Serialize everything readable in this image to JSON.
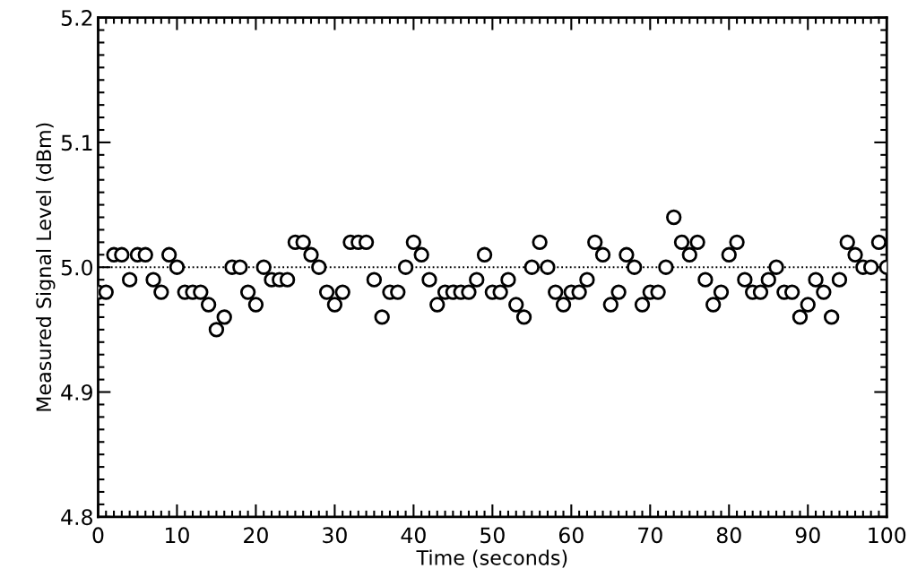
{
  "chart_data": {
    "type": "scatter",
    "xlabel": "Time (seconds)",
    "ylabel": "Measured Signal Level (dBm)",
    "x": [
      0,
      1,
      2,
      3,
      4,
      5,
      6,
      7,
      8,
      9,
      10,
      11,
      12,
      13,
      14,
      15,
      16,
      17,
      18,
      19,
      20,
      21,
      22,
      23,
      24,
      25,
      26,
      27,
      28,
      29,
      30,
      31,
      32,
      33,
      34,
      35,
      36,
      37,
      38,
      39,
      40,
      41,
      42,
      43,
      44,
      45,
      46,
      47,
      48,
      49,
      50,
      51,
      52,
      53,
      54,
      55,
      56,
      57,
      58,
      59,
      60,
      61,
      62,
      63,
      64,
      65,
      66,
      67,
      68,
      69,
      70,
      71,
      72,
      73,
      74,
      75,
      76,
      77,
      78,
      79,
      80,
      81,
      82,
      83,
      84,
      85,
      86,
      87,
      88,
      89,
      90,
      91,
      92,
      93,
      94,
      95,
      96,
      97,
      98,
      99,
      100
    ],
    "values": [
      4.98,
      4.98,
      5.01,
      5.01,
      4.99,
      5.01,
      5.01,
      4.99,
      4.98,
      5.01,
      5.0,
      4.98,
      4.98,
      4.98,
      4.97,
      4.95,
      4.96,
      5.0,
      5.0,
      4.98,
      4.97,
      5.0,
      4.99,
      4.99,
      4.99,
      5.02,
      5.02,
      5.01,
      5.0,
      4.98,
      4.97,
      4.98,
      5.02,
      5.02,
      5.02,
      4.99,
      4.96,
      4.98,
      4.98,
      5.0,
      5.02,
      5.01,
      4.99,
      4.97,
      4.98,
      4.98,
      4.98,
      4.98,
      4.99,
      5.01,
      4.98,
      4.98,
      4.99,
      4.97,
      4.96,
      5.0,
      5.02,
      5.0,
      4.98,
      4.97,
      4.98,
      4.98,
      4.99,
      5.02,
      5.01,
      4.97,
      4.98,
      5.01,
      5.0,
      4.97,
      4.98,
      4.98,
      5.0,
      5.04,
      5.02,
      5.01,
      5.02,
      4.99,
      4.97,
      4.98,
      5.01,
      5.02,
      4.99,
      4.98,
      4.98,
      4.99,
      5.0,
      4.98,
      4.98,
      4.96,
      4.97,
      4.99,
      4.98,
      4.96,
      4.99,
      5.02,
      5.01,
      5.0,
      5.0,
      5.02,
      5.0
    ],
    "color": "#000000",
    "marker": "circle",
    "xlim": [
      0,
      100
    ],
    "xticks": [
      0,
      10,
      20,
      30,
      40,
      50,
      60,
      70,
      80,
      90,
      100
    ],
    "ylim": [
      4.8,
      5.2
    ],
    "yticks": [
      {
        "value": 4.8,
        "label": "4.8"
      },
      {
        "value": 4.9,
        "label": "4.9"
      },
      {
        "value": 5.0,
        "label": "5.0"
      },
      {
        "value": 5.1,
        "label": "5.1"
      },
      {
        "value": 5.2,
        "label": "5.2"
      }
    ],
    "ref_lines": [
      {
        "axis": "y",
        "value": 5.0,
        "color": "#000000",
        "line_style": "dotted"
      }
    ],
    "grid": false,
    "legend": false
  }
}
